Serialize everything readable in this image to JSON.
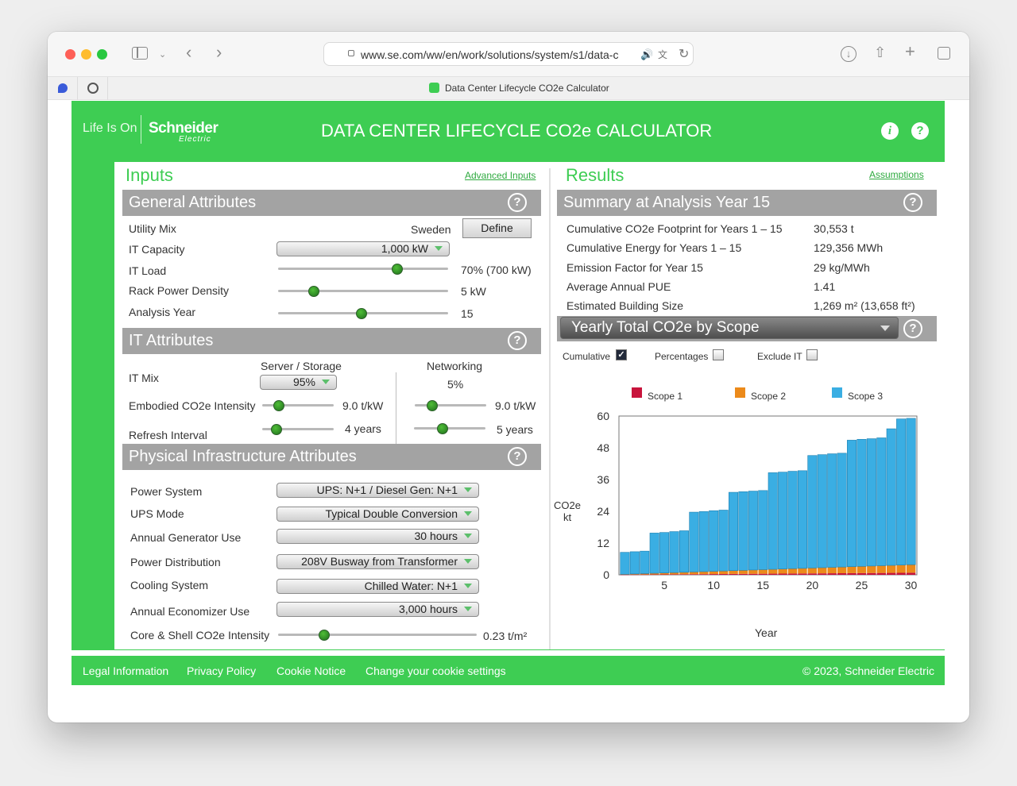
{
  "browser": {
    "url": "www.se.com/ww/en/work/solutions/system/s1/data-c",
    "tab_title": "Data Center Lifecycle CO2e Calculator"
  },
  "header": {
    "logo_tagline": "Life Is On",
    "logo_brand": "Schneider",
    "logo_sub": "Electric",
    "title": "DATA CENTER LIFECYCLE CO2e CALCULATOR",
    "info_label": "i",
    "help_label": "?"
  },
  "inputs": {
    "title": "Inputs",
    "advanced_link": "Advanced Inputs",
    "general": {
      "title": "General Attributes",
      "utility_mix_label": "Utility Mix",
      "utility_mix_value": "Sweden",
      "define_label": "Define",
      "it_capacity_label": "IT Capacity",
      "it_capacity_value": "1,000 kW",
      "it_load_label": "IT Load",
      "it_load_value": "70% (700 kW)",
      "it_load_fraction": 0.7,
      "rack_density_label": "Rack Power Density",
      "rack_density_value": "5 kW",
      "rack_density_fraction": 0.21,
      "analysis_year_label": "Analysis Year",
      "analysis_year_value": "15",
      "analysis_year_fraction": 0.49
    },
    "it": {
      "title": "IT Attributes",
      "server_header": "Server / Storage",
      "networking_header": "Networking",
      "it_mix_label": "IT Mix",
      "it_mix_value": "95%",
      "networking_value": "5%",
      "embodied_label": "Embodied CO2e Intensity",
      "embodied_server_value": "9.0 t/kW",
      "embodied_server_fraction": 0.23,
      "embodied_net_value": "9.0 t/kW",
      "embodied_net_fraction": 0.24,
      "refresh_label": "Refresh Interval",
      "refresh_server_value": "4 years",
      "refresh_server_fraction": 0.2,
      "refresh_net_value": "5 years",
      "refresh_net_fraction": 0.4
    },
    "physical": {
      "title": "Physical Infrastructure Attributes",
      "power_system_label": "Power System",
      "power_system_value": "UPS: N+1 / Diesel Gen: N+1",
      "ups_mode_label": "UPS Mode",
      "ups_mode_value": "Typical Double Conversion",
      "gen_use_label": "Annual Generator Use",
      "gen_use_value": "30 hours",
      "power_dist_label": "Power Distribution",
      "power_dist_value": "208V Busway from Transformer",
      "cooling_label": "Cooling System",
      "cooling_value": "Chilled Water: N+1",
      "economizer_label": "Annual Economizer Use",
      "economizer_value": "3,000 hours",
      "core_shell_label": "Core & Shell CO2e Intensity",
      "core_shell_value": "0.23 t/m²",
      "core_shell_fraction": 0.23
    }
  },
  "results": {
    "title": "Results",
    "assumptions_link": "Assumptions",
    "summary": {
      "title": "Summary at Analysis Year 15",
      "rows": [
        {
          "label": "Cumulative CO2e Footprint for Years 1 – 15",
          "value": "30,553 t"
        },
        {
          "label": "Cumulative Energy for Years 1 – 15",
          "value": "129,356 MWh"
        },
        {
          "label": "Emission Factor for Year 15",
          "value": "29 kg/MWh"
        },
        {
          "label": "Average Annual PUE",
          "value": "1.41"
        },
        {
          "label": "Estimated Building Size",
          "value": "1,269 m² (13,658 ft²)"
        }
      ]
    },
    "chart_select": "Yearly Total CO2e by Scope",
    "options": {
      "cumulative": "Cumulative",
      "percentages": "Percentages",
      "exclude_it": "Exclude IT",
      "checkmark": "✓"
    }
  },
  "chart_data": {
    "type": "bar",
    "stacked": true,
    "xlabel": "Year",
    "ylabel": "CO2e kt",
    "ylim": [
      0,
      60
    ],
    "yticks": [
      0,
      12,
      24,
      36,
      48,
      60
    ],
    "xticks": [
      5,
      10,
      15,
      20,
      25,
      30
    ],
    "legend_position": "top",
    "x": [
      1,
      2,
      3,
      4,
      5,
      6,
      7,
      8,
      9,
      10,
      11,
      12,
      13,
      14,
      15,
      16,
      17,
      18,
      19,
      20,
      21,
      22,
      23,
      24,
      25,
      26,
      27,
      28,
      29,
      30
    ],
    "series": [
      {
        "name": "Scope 1",
        "color": "#c8143c",
        "values": [
          0.05,
          0.08,
          0.1,
          0.13,
          0.15,
          0.18,
          0.2,
          0.23,
          0.25,
          0.28,
          0.3,
          0.33,
          0.35,
          0.38,
          0.4,
          0.43,
          0.45,
          0.48,
          0.5,
          0.53,
          0.55,
          0.58,
          0.6,
          0.63,
          0.65,
          0.68,
          0.7,
          0.73,
          0.75,
          0.78
        ]
      },
      {
        "name": "Scope 2",
        "color": "#ec8a1a",
        "values": [
          0.15,
          0.25,
          0.35,
          0.45,
          0.55,
          0.65,
          0.75,
          0.85,
          0.95,
          1.05,
          1.15,
          1.25,
          1.35,
          1.45,
          1.55,
          1.65,
          1.75,
          1.85,
          1.95,
          2.05,
          2.15,
          2.25,
          2.35,
          2.45,
          2.55,
          2.65,
          2.75,
          2.85,
          2.95,
          3.05
        ]
      },
      {
        "name": "Scope 3",
        "color": "#3aaee3",
        "values": [
          8.3,
          8.4,
          8.5,
          15.2,
          15.3,
          15.5,
          15.7,
          22.6,
          22.7,
          22.9,
          23.0,
          29.6,
          29.7,
          29.8,
          29.9,
          36.5,
          36.6,
          36.8,
          36.9,
          42.5,
          42.7,
          42.9,
          43.0,
          47.8,
          48.0,
          48.1,
          48.3,
          51.6,
          55.2,
          55.3
        ]
      }
    ]
  },
  "footer": {
    "legal": "Legal Information",
    "privacy": "Privacy Policy",
    "cookie": "Cookie Notice",
    "cookie_settings": "Change your cookie settings",
    "copyright": "© 2023, Schneider Electric"
  }
}
